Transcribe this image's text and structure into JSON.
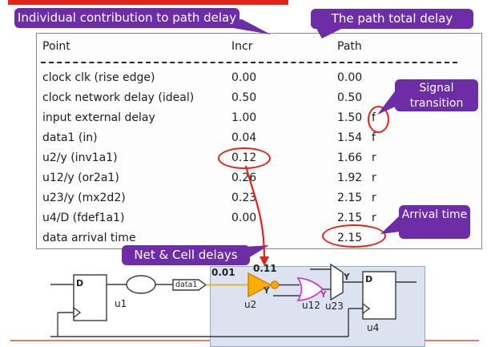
{
  "colors": {
    "red": "#e32219",
    "purple": "#6d2da6",
    "salmon": "#d4806c",
    "panel": "#dce3f0",
    "panel-border": "#9aa6ba",
    "gold": "#e2b33c",
    "inv-fill": "#f9ae00",
    "inv-stroke": "#d97f00",
    "or-stroke": "#cb3ecb",
    "ink": "#1c1c1c",
    "outline": "#3a3a3a"
  },
  "badges": {
    "incr_callout": "Individual contribution to path delay",
    "path_callout": "The path total delay",
    "transition_callout": "Signal transition",
    "arrival_callout": "Arrival time",
    "netcell_callout": "Net & Cell delays"
  },
  "report": {
    "columns": [
      "Point",
      "Incr",
      "Path"
    ],
    "rows": [
      {
        "point": "clock clk (rise edge)",
        "incr": "0.00",
        "path": "0.00",
        "trans": ""
      },
      {
        "point": "clock network delay (ideal)",
        "incr": "0.50",
        "path": "0.50",
        "trans": ""
      },
      {
        "point": "input external delay",
        "incr": "1.00",
        "path": "1.50",
        "trans": "f"
      },
      {
        "point": "data1 (in)",
        "incr": "0.04",
        "path": "1.54",
        "trans": "f"
      },
      {
        "point": "u2/y (inv1a1)",
        "incr": "0.12",
        "path": "1.66",
        "trans": "r"
      },
      {
        "point": "u12/y (or2a1)",
        "incr": "0.26",
        "path": "1.92",
        "trans": "r"
      },
      {
        "point": "u23/y (mx2d2)",
        "incr": "0.23",
        "path": "2.15",
        "trans": "r"
      },
      {
        "point": "u4/D (fdef1a1)",
        "incr": "0.00",
        "path": "2.15",
        "trans": "r"
      },
      {
        "point": "data arrival time",
        "incr": "",
        "path": "2.15",
        "trans": ""
      }
    ],
    "circled": {
      "incr_row": 4,
      "transition_row": 2,
      "arrival_row": 8
    }
  },
  "schematic": {
    "labels": {
      "u1": "u1",
      "u2": "u2",
      "u12": "u12",
      "u23": "u23",
      "u4": "u4",
      "port": "data1",
      "net_delay": "0.01",
      "cell_delay": "0.11",
      "pin_y": "Y",
      "pin_d": "D"
    }
  }
}
